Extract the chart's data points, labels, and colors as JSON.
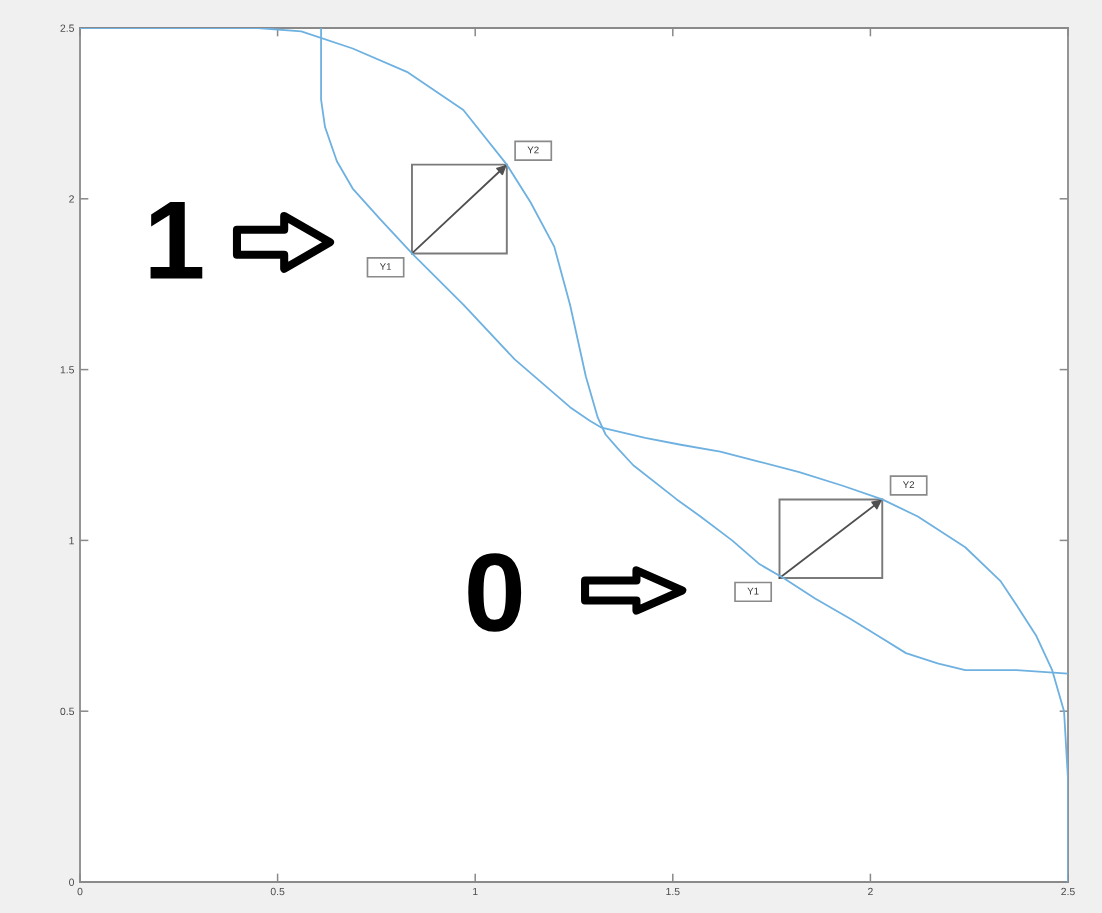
{
  "chart_data": {
    "type": "line",
    "series": [
      {
        "color": "#6eb1e1",
        "x": [
          0,
          0.3,
          0.45,
          0.56,
          0.69,
          0.83,
          0.97,
          1.08,
          1.14,
          1.2,
          1.24,
          1.28,
          1.31,
          1.33,
          1.36,
          1.4,
          1.51,
          1.57,
          1.65,
          1.72,
          1.78,
          1.86,
          1.95,
          2.02,
          2.09,
          2.17,
          2.24,
          2.37,
          2.5
        ],
        "values": [
          2.5,
          2.5,
          2.5,
          2.49,
          2.44,
          2.37,
          2.26,
          2.1,
          1.99,
          1.86,
          1.69,
          1.48,
          1.36,
          1.31,
          1.27,
          1.22,
          1.12,
          1.07,
          1.0,
          0.93,
          0.89,
          0.83,
          0.77,
          0.72,
          0.67,
          0.64,
          0.62,
          0.62,
          0.61
        ]
      },
      {
        "color": "#6eb1e1",
        "x": [
          0.61,
          0.61,
          0.61,
          0.62,
          0.65,
          0.69,
          0.76,
          0.84,
          0.97,
          1.1,
          1.24,
          1.29,
          1.32,
          1.43,
          1.52,
          1.62,
          1.72,
          1.82,
          1.93,
          2.03,
          2.12,
          2.24,
          2.33,
          2.37,
          2.42,
          2.46,
          2.49,
          2.5,
          2.5
        ],
        "values": [
          2.5,
          2.37,
          2.29,
          2.21,
          2.11,
          2.03,
          1.94,
          1.84,
          1.69,
          1.53,
          1.39,
          1.35,
          1.33,
          1.3,
          1.28,
          1.26,
          1.23,
          1.2,
          1.16,
          1.12,
          1.07,
          0.98,
          0.88,
          0.81,
          0.72,
          0.62,
          0.5,
          0.3,
          0
        ]
      }
    ],
    "xlim": [
      0,
      2.5
    ],
    "ylim": [
      0,
      2.5
    ],
    "xticks": [
      0,
      0.5,
      1,
      1.5,
      2,
      2.5
    ],
    "yticks": [
      0,
      0.5,
      1,
      1.5,
      2,
      2.5
    ],
    "line_style": "solid",
    "annotations": [
      {
        "text": "Y1",
        "x": 0.84,
        "y": 1.84
      },
      {
        "text": "Y2",
        "x": 1.08,
        "y": 2.1
      },
      {
        "text": "Y1",
        "x": 1.77,
        "y": 0.89
      },
      {
        "text": "Y2",
        "x": 2.03,
        "y": 1.12
      },
      "1",
      "0"
    ]
  }
}
